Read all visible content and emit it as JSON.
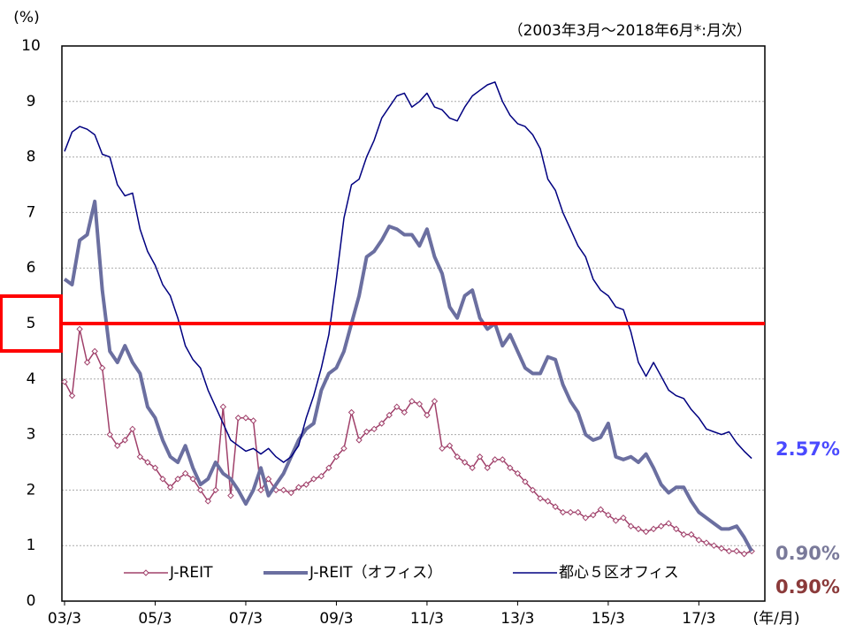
{
  "chart_data": {
    "type": "line",
    "subtitle": "（2003年3月～2018年6月*:月次）",
    "y_unit_label": "(%)",
    "x_label": "(年/月)",
    "categories": [
      "03/3",
      null,
      null,
      null,
      null,
      null,
      null,
      null,
      null,
      null,
      null,
      null,
      "05/3",
      null,
      null,
      null,
      null,
      null,
      null,
      null,
      null,
      null,
      null,
      null,
      "07/3",
      null,
      null,
      null,
      null,
      null,
      null,
      null,
      null,
      null,
      null,
      null,
      "09/3",
      null,
      null,
      null,
      null,
      null,
      null,
      null,
      null,
      null,
      null,
      null,
      "11/3",
      null,
      null,
      null,
      null,
      null,
      null,
      null,
      null,
      null,
      null,
      null,
      "13/3",
      null,
      null,
      null,
      null,
      null,
      null,
      null,
      null,
      null,
      null,
      null,
      "15/3",
      null,
      null,
      null,
      null,
      null,
      null,
      null,
      null,
      null,
      null,
      null,
      "17/3",
      null,
      null,
      null,
      null,
      null,
      null,
      null
    ],
    "ylim": [
      0,
      10
    ],
    "yticks": [
      0,
      1,
      2,
      3,
      4,
      5,
      6,
      7,
      8,
      9,
      10
    ],
    "grid": true,
    "highlight": {
      "value": 5,
      "color": "#ff0000"
    },
    "series": [
      {
        "name": "J-REIT",
        "color": "#a0406a",
        "marker": "diamond",
        "line_width": 1.5,
        "end_label": "0.90%",
        "label_color": "#8b3a3a",
        "values": [
          3.95,
          3.7,
          4.9,
          4.3,
          4.5,
          4.2,
          3.0,
          2.8,
          2.9,
          3.1,
          2.6,
          2.5,
          2.4,
          2.2,
          2.05,
          2.2,
          2.3,
          2.2,
          2.0,
          1.8,
          2.0,
          3.5,
          1.9,
          3.3,
          3.3,
          3.25,
          2.0,
          2.2,
          2.0,
          2.0,
          1.95,
          2.05,
          2.1,
          2.2,
          2.25,
          2.4,
          2.6,
          2.75,
          3.4,
          2.9,
          3.05,
          3.1,
          3.2,
          3.35,
          3.5,
          3.4,
          3.6,
          3.55,
          3.35,
          3.6,
          2.75,
          2.8,
          2.6,
          2.5,
          2.4,
          2.6,
          2.4,
          2.55,
          2.55,
          2.4,
          2.3,
          2.15,
          2.0,
          1.85,
          1.8,
          1.7,
          1.6,
          1.6,
          1.6,
          1.5,
          1.55,
          1.65,
          1.55,
          1.45,
          1.5,
          1.35,
          1.3,
          1.25,
          1.3,
          1.35,
          1.4,
          1.3,
          1.2,
          1.2,
          1.1,
          1.05,
          1.0,
          0.95,
          0.9,
          0.9,
          0.85,
          0.9
        ]
      },
      {
        "name": "J-REIT（オフィス）",
        "color": "#6b6fa0",
        "line_width": 4,
        "end_label": "0.90%",
        "label_color": "#7a7a9a",
        "values": [
          5.8,
          5.7,
          6.5,
          6.6,
          7.2,
          5.6,
          4.5,
          4.3,
          4.6,
          4.3,
          4.1,
          3.5,
          3.3,
          2.9,
          2.6,
          2.5,
          2.8,
          2.4,
          2.1,
          2.2,
          2.5,
          2.3,
          2.2,
          2.0,
          1.75,
          2.0,
          2.4,
          1.9,
          2.1,
          2.3,
          2.6,
          2.9,
          3.1,
          3.2,
          3.8,
          4.1,
          4.2,
          4.5,
          5.0,
          5.5,
          6.2,
          6.3,
          6.5,
          6.75,
          6.7,
          6.6,
          6.6,
          6.4,
          6.7,
          6.2,
          5.9,
          5.3,
          5.1,
          5.5,
          5.6,
          5.1,
          4.9,
          5.0,
          4.6,
          4.8,
          4.5,
          4.2,
          4.1,
          4.1,
          4.4,
          4.35,
          3.9,
          3.6,
          3.4,
          3.0,
          2.9,
          2.95,
          3.2,
          2.6,
          2.55,
          2.6,
          2.5,
          2.65,
          2.4,
          2.1,
          1.95,
          2.05,
          2.05,
          1.8,
          1.6,
          1.5,
          1.4,
          1.3,
          1.3,
          1.35,
          1.15,
          0.9
        ]
      },
      {
        "name": "都心５区オフィス",
        "color": "#000080",
        "line_width": 1.5,
        "end_label": "2.57%",
        "label_color": "#4a4aff",
        "values": [
          8.1,
          8.45,
          8.55,
          8.5,
          8.4,
          8.05,
          8.0,
          7.5,
          7.3,
          7.35,
          6.7,
          6.3,
          6.05,
          5.7,
          5.5,
          5.1,
          4.6,
          4.35,
          4.2,
          3.8,
          3.5,
          3.2,
          2.9,
          2.8,
          2.7,
          2.75,
          2.65,
          2.75,
          2.6,
          2.5,
          2.6,
          2.8,
          3.3,
          3.7,
          4.2,
          4.8,
          5.8,
          6.9,
          7.5,
          7.6,
          8.0,
          8.3,
          8.7,
          8.9,
          9.1,
          9.15,
          8.9,
          9.0,
          9.15,
          8.9,
          8.85,
          8.7,
          8.65,
          8.9,
          9.1,
          9.2,
          9.3,
          9.35,
          9.0,
          8.75,
          8.6,
          8.55,
          8.4,
          8.15,
          7.6,
          7.4,
          7.0,
          6.7,
          6.4,
          6.2,
          5.8,
          5.6,
          5.5,
          5.3,
          5.25,
          4.85,
          4.3,
          4.05,
          4.3,
          4.05,
          3.8,
          3.7,
          3.65,
          3.45,
          3.3,
          3.1,
          3.05,
          3.0,
          3.05,
          2.85,
          2.7,
          2.57
        ]
      }
    ]
  }
}
